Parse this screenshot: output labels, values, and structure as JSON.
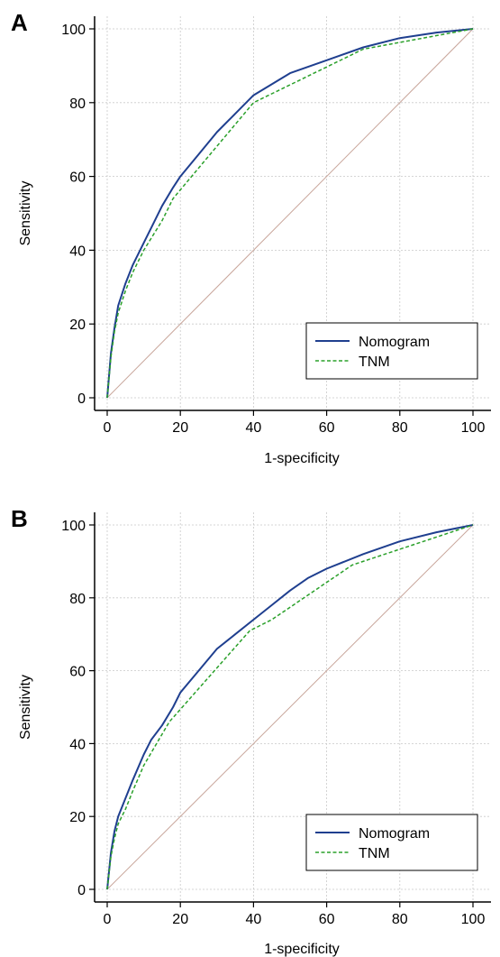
{
  "chart_data": [
    {
      "panel_label": "A",
      "type": "line",
      "xlabel": "1-specificity",
      "ylabel": "Sensitivity",
      "xlim": [
        0,
        100
      ],
      "ylim": [
        0,
        100
      ],
      "xticks": [
        "0",
        "20",
        "40",
        "60",
        "80",
        "100"
      ],
      "yticks": [
        "0",
        "20",
        "40",
        "60",
        "80",
        "100"
      ],
      "grid": true,
      "legend_position": "bottom-right",
      "reference_line": {
        "x": [
          0,
          100
        ],
        "y": [
          0,
          100
        ],
        "color": "#c8a59a"
      },
      "series": [
        {
          "name": "Nomogram",
          "color": "#1f3f8f",
          "style": "solid",
          "x": [
            0,
            1,
            2,
            3,
            5,
            7,
            10,
            12,
            15,
            18,
            20,
            25,
            30,
            35,
            40,
            45,
            50,
            60,
            70,
            80,
            90,
            100
          ],
          "y": [
            0,
            12,
            19,
            25,
            31,
            36,
            42,
            46,
            52,
            57,
            60,
            66,
            72,
            77,
            82,
            85,
            88,
            91.5,
            95,
            97.5,
            99,
            100
          ]
        },
        {
          "name": "TNM",
          "color": "#2aa02a",
          "style": "dashed",
          "x": [
            0,
            1,
            2,
            3,
            5,
            7,
            10,
            15,
            18,
            40,
            70,
            100
          ],
          "y": [
            0,
            11,
            18,
            23,
            29,
            34,
            40,
            48,
            54,
            80,
            94.5,
            100
          ]
        }
      ]
    },
    {
      "panel_label": "B",
      "type": "line",
      "xlabel": "1-specificity",
      "ylabel": "Sensitivity",
      "xlim": [
        0,
        100
      ],
      "ylim": [
        0,
        100
      ],
      "xticks": [
        "0",
        "20",
        "40",
        "60",
        "80",
        "100"
      ],
      "yticks": [
        "0",
        "20",
        "40",
        "60",
        "80",
        "100"
      ],
      "grid": true,
      "legend_position": "bottom-right",
      "reference_line": {
        "x": [
          0,
          100
        ],
        "y": [
          0,
          100
        ],
        "color": "#c8a59a"
      },
      "series": [
        {
          "name": "Nomogram",
          "color": "#1f3f8f",
          "style": "solid",
          "x": [
            0,
            1,
            2,
            3,
            5,
            7,
            10,
            12,
            15,
            18,
            20,
            25,
            30,
            35,
            40,
            45,
            50,
            55,
            60,
            70,
            80,
            90,
            100
          ],
          "y": [
            0,
            10,
            16,
            20,
            25,
            30,
            37,
            41,
            45,
            50,
            54,
            60,
            66,
            70,
            74,
            78,
            82,
            85.5,
            88,
            92,
            95.5,
            98,
            100
          ]
        },
        {
          "name": "TNM",
          "color": "#2aa02a",
          "style": "dashed",
          "x": [
            0,
            1,
            2,
            3,
            5,
            7,
            10,
            17,
            39,
            45,
            67,
            100
          ],
          "y": [
            0,
            9,
            14,
            18,
            22,
            27,
            34,
            46,
            71,
            74,
            89,
            100
          ]
        }
      ]
    }
  ]
}
